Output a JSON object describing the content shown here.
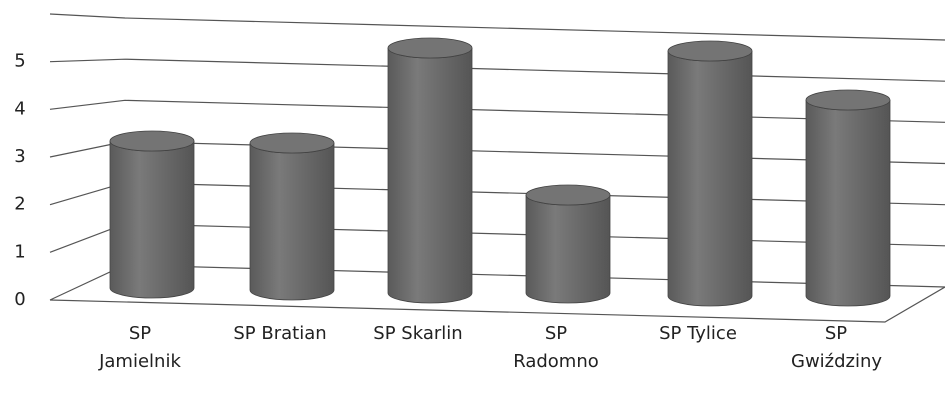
{
  "chart_data": {
    "type": "bar3d",
    "categories": [
      "SP Jamielnik",
      "SP Bratian",
      "SP Skarlin",
      "SP Radomno",
      "SP Tylice",
      "SP Gwiździny"
    ],
    "values": [
      3,
      3,
      5,
      2,
      5,
      4
    ],
    "color": "#6e6e6e",
    "ylim": [
      0,
      6
    ],
    "yticks": [
      0,
      1,
      2,
      3,
      4,
      5
    ],
    "grid": true
  }
}
